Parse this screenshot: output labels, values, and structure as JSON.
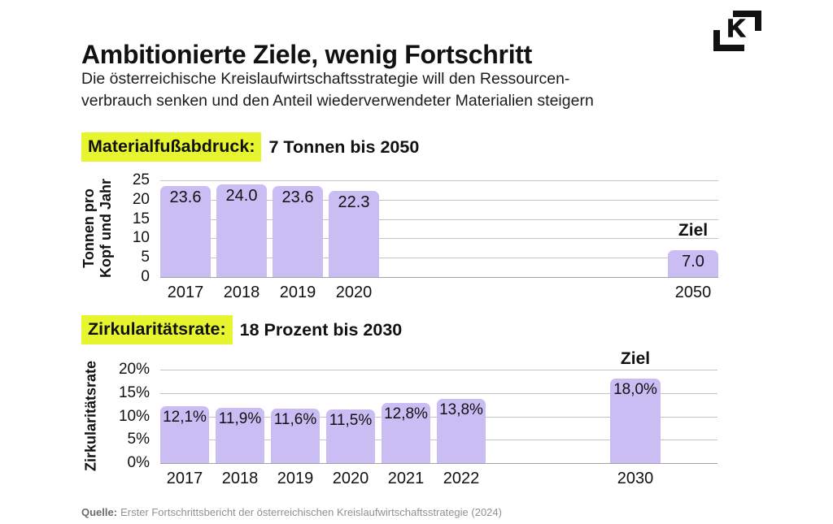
{
  "header": {
    "title": "Ambitionierte Ziele, wenig Fortschritt",
    "subtitle_line1": "Die österreichische Kreislaufwirtschaftsstrategie will den Ressourcen-",
    "subtitle_line2": "verbrauch senken und den Anteil wiederverwendeter Materialien steigern",
    "logo_letter": "K"
  },
  "colors": {
    "bar": "#c9bdf3",
    "highlight": "#e6f52d",
    "grid": "#c3c3c3",
    "text": "#111111",
    "source_text": "#909090"
  },
  "chart_data": [
    {
      "type": "bar",
      "title": "Materialfußabdruck: 7 Tonnen bis 2050",
      "heading_highlight": "Materialfußabdruck:",
      "heading_rest": "7 Tonnen bis 2050",
      "ylabel": "Tonnen pro Kopf und Jahr",
      "ylabel_line1": "Tonnen pro",
      "ylabel_line2": "Kopf und Jahr",
      "categories": [
        "2017",
        "2018",
        "2019",
        "2020",
        "2050"
      ],
      "values": [
        23.6,
        24.0,
        23.6,
        22.3,
        7.0
      ],
      "labels": [
        "23.6",
        "24.0",
        "23.6",
        "22.3",
        "7.0"
      ],
      "ylim": [
        0,
        25
      ],
      "yticks": [
        "25",
        "20",
        "15",
        "10",
        "5",
        "0"
      ],
      "grid": true,
      "goal_index": 4,
      "goal_label": "Ziel"
    },
    {
      "type": "bar",
      "title": "Zirkularitätsrate: 18 Prozent bis 2030",
      "heading_highlight": "Zirkularitätsrate:",
      "heading_rest": "18 Prozent bis 2030",
      "ylabel": "Zirkularitätsrate",
      "ylabel_line1": "Zirkularitätsrate",
      "ylabel_line2": "",
      "categories": [
        "2017",
        "2018",
        "2019",
        "2020",
        "2021",
        "2022",
        "2030"
      ],
      "values": [
        12.1,
        11.9,
        11.6,
        11.5,
        12.8,
        13.8,
        18.0
      ],
      "labels": [
        "12,1%",
        "11,9%",
        "11,6%",
        "11,5%",
        "12,8%",
        "13,8%",
        "18,0%"
      ],
      "ylim": [
        0,
        20
      ],
      "yticks": [
        "20%",
        "15%",
        "10%",
        "5%",
        "0%"
      ],
      "grid": true,
      "goal_index": 6,
      "goal_label": "Ziel"
    }
  ],
  "source": {
    "prefix": "Quelle:",
    "text": "Erster Fortschrittsbericht der österreichischen Kreislaufwirtschaftsstrategie (2024)"
  }
}
